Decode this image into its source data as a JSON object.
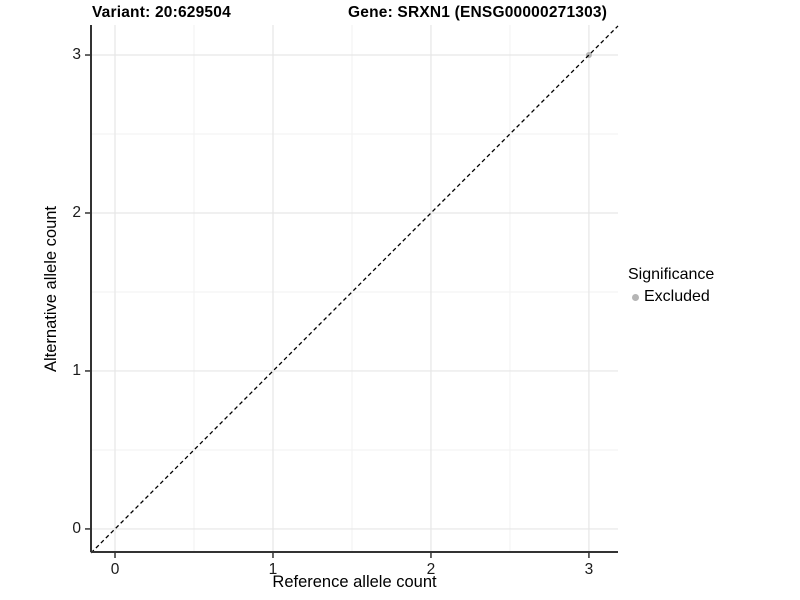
{
  "titles": {
    "variant": "Variant: 20:629504",
    "gene": "Gene: SRXN1 (ENSG00000271303)"
  },
  "axes": {
    "x_label": "Reference allele count",
    "y_label": "Alternative allele count"
  },
  "legend": {
    "title": "Significance",
    "items": [
      {
        "label": "Excluded",
        "color": "#b5b5b5"
      }
    ]
  },
  "chart_data": {
    "type": "scatter",
    "title": "Variant: 20:629504  /  Gene: SRXN1 (ENSG00000271303)",
    "xlabel": "Reference allele count",
    "ylabel": "Alternative allele count",
    "xlim": [
      -0.152,
      3.184
    ],
    "ylim": [
      -0.146,
      3.19
    ],
    "x_ticks": [
      0,
      1,
      2,
      3
    ],
    "y_ticks": [
      0,
      1,
      2,
      3
    ],
    "x_minor_ticks": [
      0.5,
      1.5,
      2.5
    ],
    "y_minor_ticks": [
      0.5,
      1.5,
      2.5
    ],
    "grid": "major+minor",
    "legend_position": "right",
    "series": [
      {
        "name": "Excluded",
        "color": "#b5b5b5",
        "point_radius": 3,
        "points": [
          [
            3,
            3
          ]
        ]
      }
    ],
    "reference_line": {
      "kind": "abline",
      "intercept": 0,
      "slope": 1,
      "style": "dashed",
      "color": "#000000"
    },
    "style": {
      "grid_major_color": "#e6e6e6",
      "grid_minor_color": "#f2f2f2",
      "axis_line_color": "#333333",
      "tick_color": "#333333",
      "tick_length": 6,
      "panel_bg": "#ffffff"
    }
  }
}
